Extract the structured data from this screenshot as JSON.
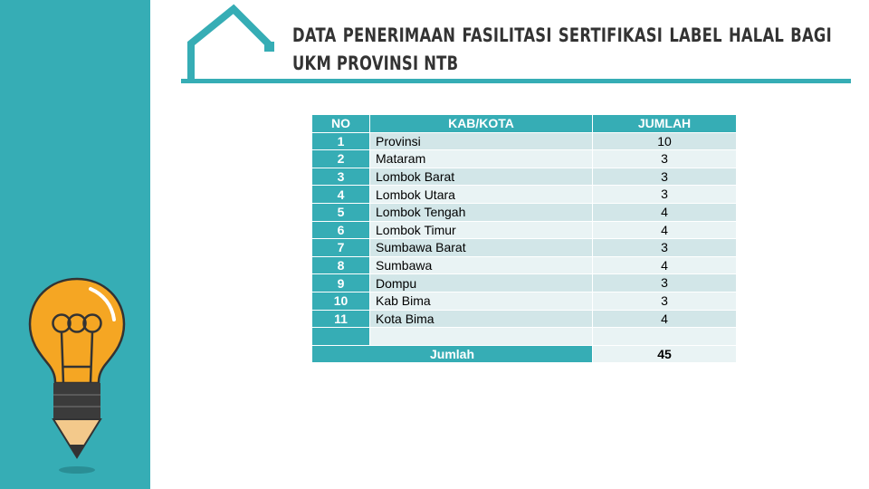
{
  "slide": {
    "title": "DATA PENERIMAAN FASILITASI SERTIFIKASI LABEL HALAL BAGI UKM PROVINSI NTB"
  },
  "table": {
    "headers": [
      "NO",
      "KAB/KOTA",
      "JUMLAH"
    ],
    "rows": [
      {
        "no": "1",
        "kab": "Provinsi",
        "jumlah": "10"
      },
      {
        "no": "2",
        "kab": "Mataram",
        "jumlah": "3"
      },
      {
        "no": "3",
        "kab": "Lombok Barat",
        "jumlah": "3"
      },
      {
        "no": "4",
        "kab": "Lombok Utara",
        "jumlah": "3"
      },
      {
        "no": "5",
        "kab": "Lombok Tengah",
        "jumlah": "4"
      },
      {
        "no": "6",
        "kab": "Lombok Timur",
        "jumlah": "4"
      },
      {
        "no": "7",
        "kab": "Sumbawa Barat",
        "jumlah": "3"
      },
      {
        "no": "8",
        "kab": "Sumbawa",
        "jumlah": "4"
      },
      {
        "no": "9",
        "kab": "Dompu",
        "jumlah": "3"
      },
      {
        "no": "10",
        "kab": "Kab Bima",
        "jumlah": "3"
      },
      {
        "no": "11",
        "kab": "Kota Bima",
        "jumlah": "4"
      },
      {
        "no": "",
        "kab": "",
        "jumlah": ""
      }
    ],
    "total_label": "Jumlah",
    "total_value": "45"
  },
  "colors": {
    "accent": "#36adb5",
    "row_odd": "#d2e6e8",
    "row_even": "#e9f3f4",
    "bulb": "#f5a623"
  },
  "icons": {
    "house": "house-outline-icon",
    "bulb": "lightbulb-pencil-icon"
  }
}
